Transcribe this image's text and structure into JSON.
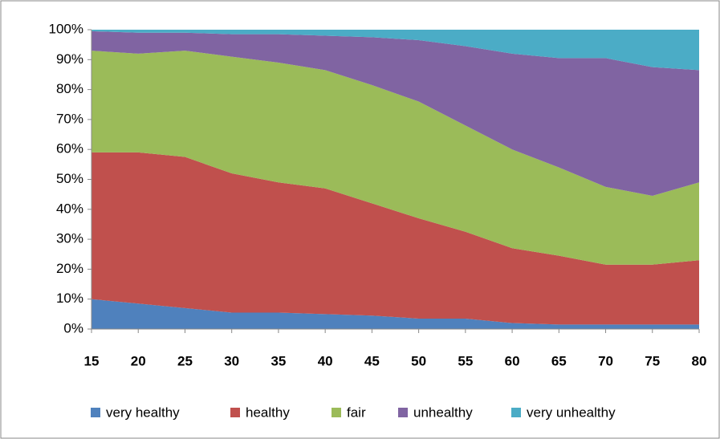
{
  "chart_data": {
    "type": "area",
    "stacked": true,
    "x": [
      15,
      20,
      25,
      30,
      35,
      40,
      45,
      50,
      55,
      60,
      65,
      70,
      75,
      80
    ],
    "xlim": [
      15,
      80
    ],
    "xticks": [
      15,
      20,
      25,
      30,
      35,
      40,
      45,
      50,
      55,
      60,
      65,
      70,
      75,
      80
    ],
    "ylim": [
      0,
      100
    ],
    "yticks": [
      {
        "value": 0,
        "label": "0%"
      },
      {
        "value": 10,
        "label": "10%"
      },
      {
        "value": 20,
        "label": "20%"
      },
      {
        "value": 30,
        "label": "30%"
      },
      {
        "value": 40,
        "label": "40%"
      },
      {
        "value": 50,
        "label": "50%"
      },
      {
        "value": 60,
        "label": "60%"
      },
      {
        "value": 70,
        "label": "70%"
      },
      {
        "value": 80,
        "label": "80%"
      },
      {
        "value": 90,
        "label": "90%"
      },
      {
        "value": 100,
        "label": "100%"
      }
    ],
    "grid": false,
    "legend": "bottom",
    "series": [
      {
        "name": "very healthy",
        "color": "#4f81bd",
        "values": [
          10,
          8.5,
          7,
          5.5,
          5.5,
          5,
          4.5,
          3.5,
          3.5,
          2,
          1.5,
          1.5,
          1.5,
          1.5
        ]
      },
      {
        "name": "healthy",
        "color": "#c0504d",
        "values": [
          49,
          50.5,
          50.5,
          46.5,
          43.5,
          42,
          37.5,
          33.5,
          29,
          25,
          23,
          20,
          20,
          21.5
        ]
      },
      {
        "name": "fair",
        "color": "#9bbb59",
        "values": [
          34,
          33,
          35.5,
          39,
          40,
          39.5,
          39.5,
          39,
          35.5,
          33,
          29.5,
          26,
          23,
          26
        ]
      },
      {
        "name": "unhealthy",
        "color": "#8064a2",
        "values": [
          6.5,
          7,
          6,
          7.5,
          9.5,
          11.5,
          16,
          20.5,
          26.5,
          32,
          36.5,
          43,
          43,
          37.5
        ]
      },
      {
        "name": "very unhealthy",
        "color": "#4bacc6",
        "values": [
          0.5,
          1,
          1,
          1.5,
          1.5,
          2,
          2.5,
          3.5,
          5.5,
          8,
          9.5,
          9.5,
          12.5,
          13.5
        ]
      }
    ]
  }
}
